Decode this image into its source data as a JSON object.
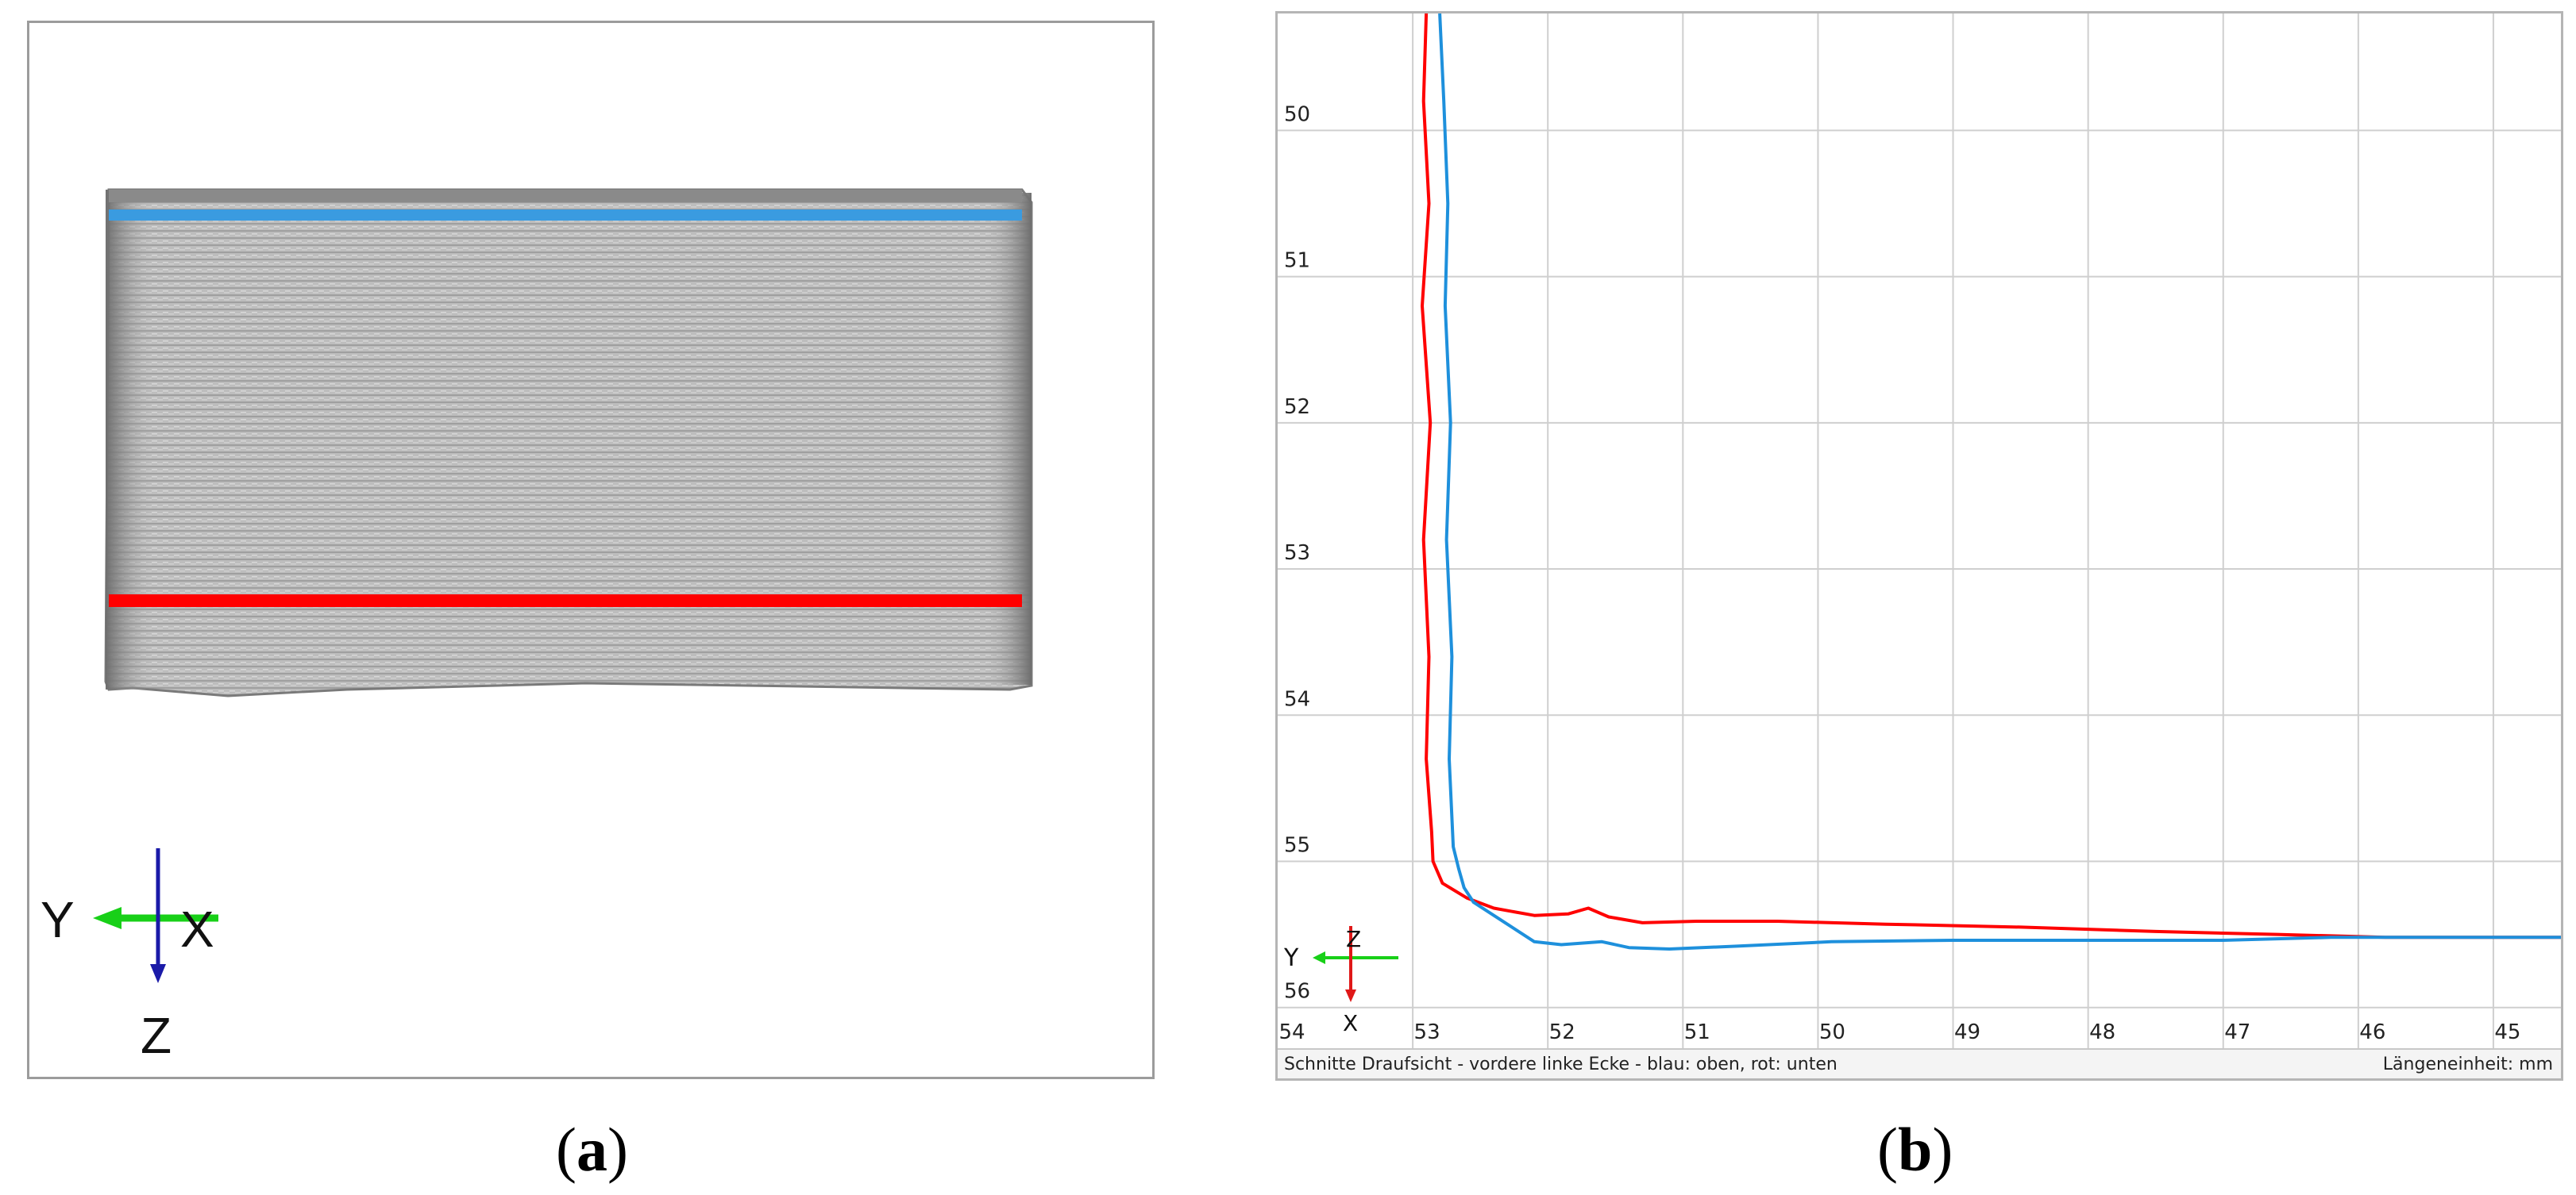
{
  "panel_a": {
    "caption": "a",
    "axis_labels": {
      "y": "Y",
      "x": "X",
      "z": "Z"
    },
    "colors": {
      "top_line": "#3a9be0",
      "bottom_line": "#ff0000",
      "surface": "#b9b9b9",
      "y_arrow": "#18d018",
      "z_arrow": "#1a1aa8"
    }
  },
  "panel_b": {
    "caption": "b",
    "status_left": "Schnitte Draufsicht - vordere linke Ecke - blau: oben, rot: unten",
    "status_right": "Längeneinheit: mm",
    "triad_labels": {
      "y": "Y",
      "z": "Z",
      "x": "X"
    },
    "chart_data": {
      "type": "line",
      "x_ticks": [
        "54",
        "53",
        "52",
        "51",
        "50",
        "49",
        "48",
        "47",
        "46",
        "45"
      ],
      "y_ticks": [
        "50",
        "51",
        "52",
        "53",
        "54",
        "55",
        "56"
      ],
      "xlim": [
        54.0,
        44.5
      ],
      "ylim": [
        49.2,
        56.3
      ],
      "x_reversed": true,
      "y_inverted": true,
      "grid": true,
      "series": [
        {
          "color": "#ff0000",
          "points": [
            [
              52.9,
              49.2
            ],
            [
              52.92,
              49.8
            ],
            [
              52.88,
              50.5
            ],
            [
              52.93,
              51.2
            ],
            [
              52.87,
              52.0
            ],
            [
              52.92,
              52.8
            ],
            [
              52.88,
              53.6
            ],
            [
              52.9,
              54.3
            ],
            [
              52.86,
              54.8
            ],
            [
              52.85,
              55.0
            ],
            [
              52.78,
              55.15
            ],
            [
              52.6,
              55.25
            ],
            [
              52.4,
              55.32
            ],
            [
              52.1,
              55.37
            ],
            [
              51.85,
              55.36
            ],
            [
              51.7,
              55.32
            ],
            [
              51.55,
              55.38
            ],
            [
              51.3,
              55.42
            ],
            [
              50.9,
              55.41
            ],
            [
              50.3,
              55.41
            ],
            [
              49.5,
              55.43
            ],
            [
              48.5,
              55.45
            ],
            [
              47.5,
              55.48
            ],
            [
              46.6,
              55.5
            ],
            [
              45.8,
              55.52
            ],
            [
              44.5,
              55.52
            ]
          ]
        },
        {
          "color": "#1e90dc",
          "points": [
            [
              52.8,
              49.2
            ],
            [
              52.77,
              49.8
            ],
            [
              52.74,
              50.5
            ],
            [
              52.76,
              51.2
            ],
            [
              52.72,
              52.0
            ],
            [
              52.75,
              52.8
            ],
            [
              52.71,
              53.6
            ],
            [
              52.73,
              54.3
            ],
            [
              52.7,
              54.9
            ],
            [
              52.66,
              55.05
            ],
            [
              52.62,
              55.18
            ],
            [
              52.55,
              55.28
            ],
            [
              52.3,
              55.43
            ],
            [
              52.1,
              55.55
            ],
            [
              51.9,
              55.57
            ],
            [
              51.6,
              55.55
            ],
            [
              51.4,
              55.59
            ],
            [
              51.1,
              55.6
            ],
            [
              50.6,
              55.58
            ],
            [
              49.9,
              55.55
            ],
            [
              49.0,
              55.54
            ],
            [
              48.0,
              55.54
            ],
            [
              47.0,
              55.54
            ],
            [
              46.2,
              55.52
            ],
            [
              44.5,
              55.52
            ]
          ]
        }
      ]
    }
  }
}
